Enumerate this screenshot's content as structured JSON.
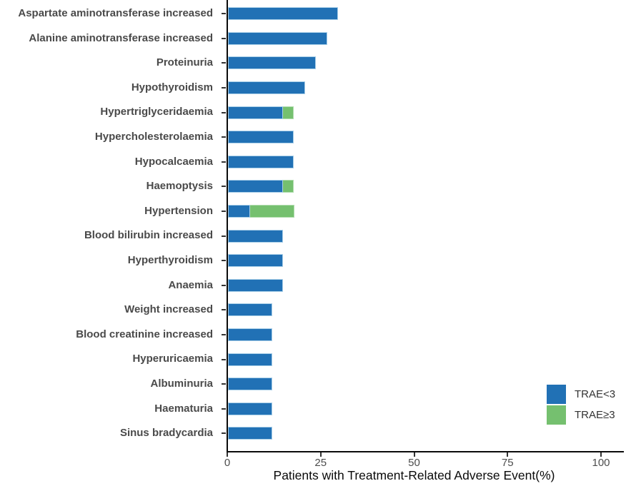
{
  "chart_data": {
    "type": "bar",
    "orientation": "horizontal",
    "stacked": true,
    "title": "",
    "xlabel": "Patients with Treatment-Related Adverse Event(%)",
    "ylabel": "",
    "xlim": [
      0,
      106
    ],
    "x_ticks": [
      0,
      25,
      50,
      75,
      100
    ],
    "grid": false,
    "legend_position": "bottom-right",
    "categories": [
      "Aspartate aminotransferase increased",
      "Alanine aminotransferase increased",
      "Proteinuria",
      "Hypothyroidism",
      "Hypertriglyceridaemia",
      "Hypercholesterolaemia",
      "Hypocalcaemia",
      "Haemoptysis",
      "Hypertension",
      "Blood bilirubin increased",
      "Hyperthyroidism",
      "Anaemia",
      "Weight increased",
      "Blood creatinine increased",
      "Hyperuricaemia",
      "Albuminuria",
      "Haematuria",
      "Sinus bradycardia"
    ],
    "series": [
      {
        "name": "TRAE<3",
        "color": "#2171b5",
        "values": [
          29.4,
          26.5,
          23.5,
          20.6,
          14.7,
          17.6,
          17.6,
          14.7,
          5.9,
          14.7,
          14.7,
          14.7,
          11.8,
          11.8,
          11.8,
          11.8,
          11.8,
          11.8
        ]
      },
      {
        "name": "TRAE≥3",
        "color": "#75c06f",
        "values": [
          0,
          0,
          0,
          0,
          2.9,
          0,
          0,
          2.9,
          11.8,
          0,
          0,
          0,
          0,
          0,
          0,
          0,
          0,
          0
        ]
      }
    ]
  },
  "colors": {
    "axis": "#0a0a0a",
    "tick": "#333333",
    "category_label": "#4a4a4a",
    "tick_label": "#4d4d4d"
  }
}
